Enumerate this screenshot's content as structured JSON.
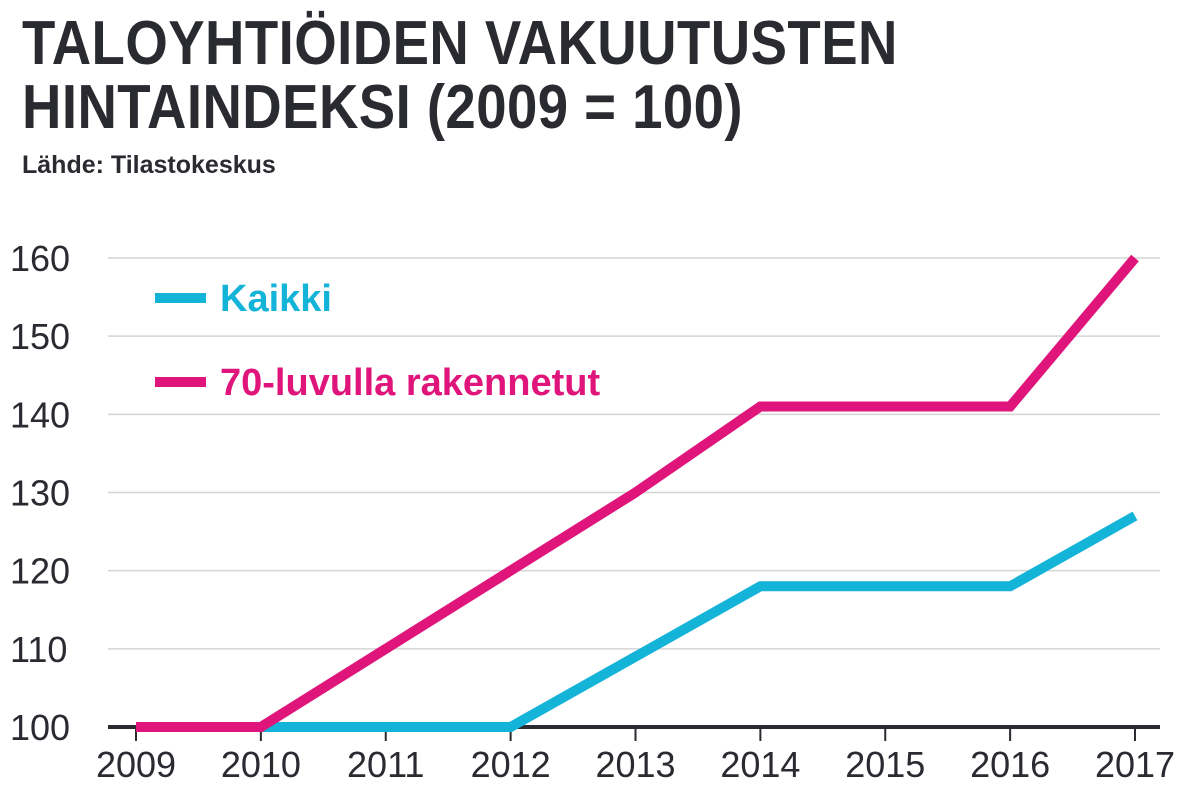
{
  "title": "TALOYHTIÖIDEN VAKUUTUSTEN HINTAINDEKSI (2009 = 100)",
  "subtitle": "Lähde: Tilastokeskus",
  "colors": {
    "text": "#2a2a31",
    "grid": "#d4d4d4",
    "axis": "#2a2a31"
  },
  "chart_data": {
    "type": "line",
    "x": [
      2009,
      2010,
      2011,
      2012,
      2013,
      2014,
      2015,
      2016,
      2017
    ],
    "series": [
      {
        "name": "Kaikki",
        "color": "#14b4d8",
        "values": [
          100,
          100,
          100,
          100,
          109,
          118,
          118,
          118,
          127
        ]
      },
      {
        "name": "70-luvulla rakennetut",
        "color": "#e0157c",
        "values": [
          100,
          100,
          110,
          120,
          130,
          141,
          141,
          141,
          160
        ]
      }
    ],
    "yticks": [
      100,
      110,
      120,
      130,
      140,
      150,
      160
    ],
    "ylim": [
      100,
      160
    ],
    "xlim": [
      2009,
      2017
    ],
    "grid": true,
    "legend_position": "top-left",
    "xlabel": "",
    "ylabel": ""
  }
}
